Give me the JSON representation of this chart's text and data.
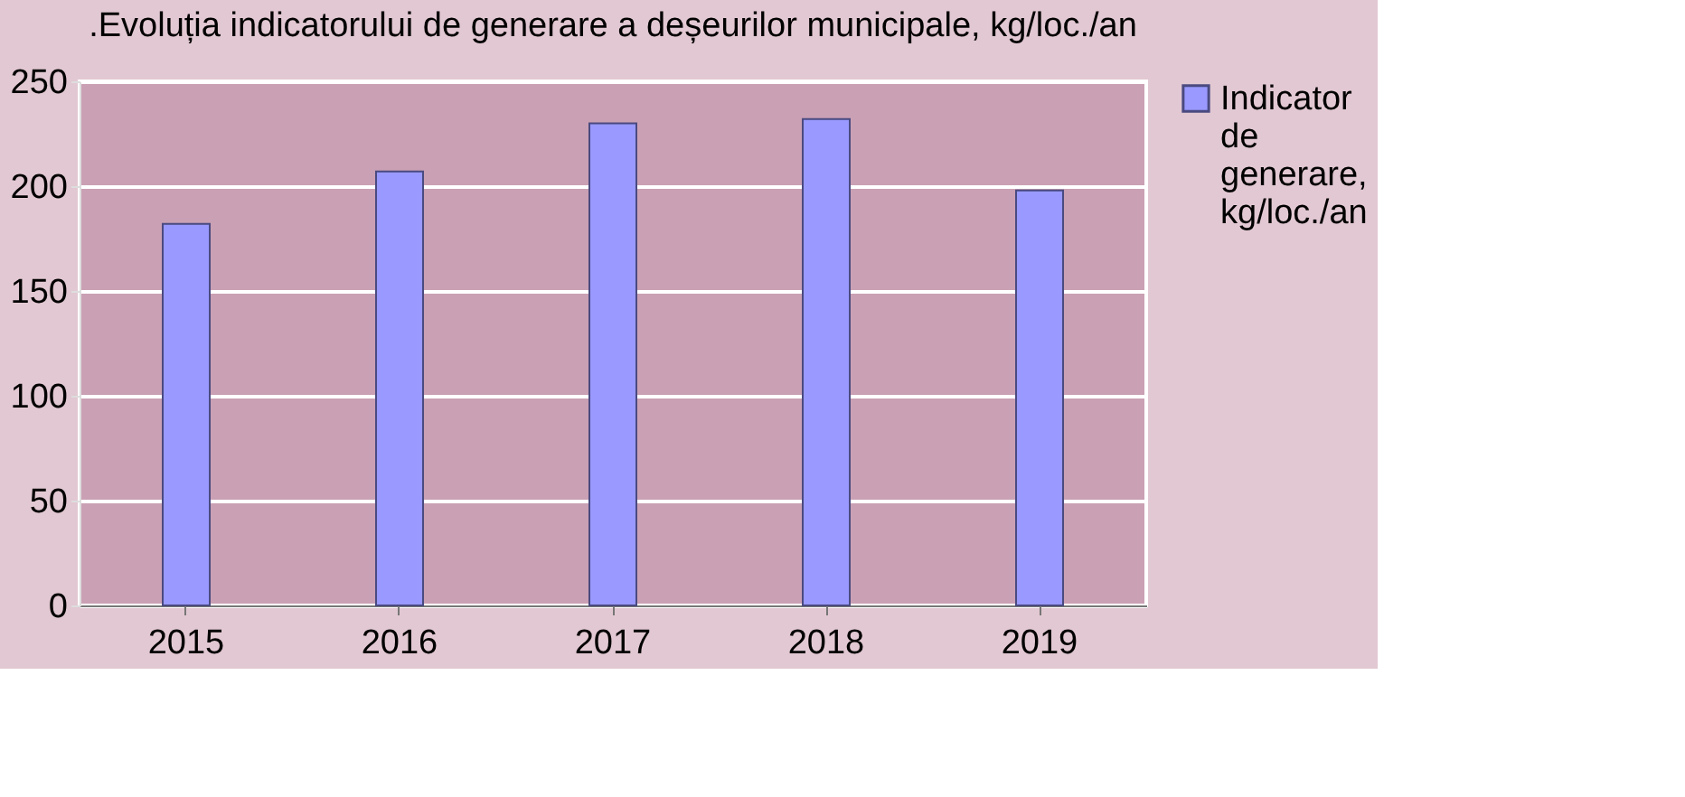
{
  "chart_data": {
    "type": "bar",
    "title": ".Evoluția indicatorului de generare a deșeurilor municipale, kg/loc./an",
    "categories": [
      "2015",
      "2016",
      "2017",
      "2018",
      "2019"
    ],
    "series": [
      {
        "name": "Indicator de generare, kg/loc./an",
        "color": "#9999ff",
        "values": [
          182,
          207,
          230,
          232,
          198
        ]
      }
    ],
    "ylim": [
      0,
      250
    ],
    "yticks": [
      0,
      50,
      100,
      150,
      200,
      250
    ],
    "grid": "y",
    "legend": "right"
  }
}
